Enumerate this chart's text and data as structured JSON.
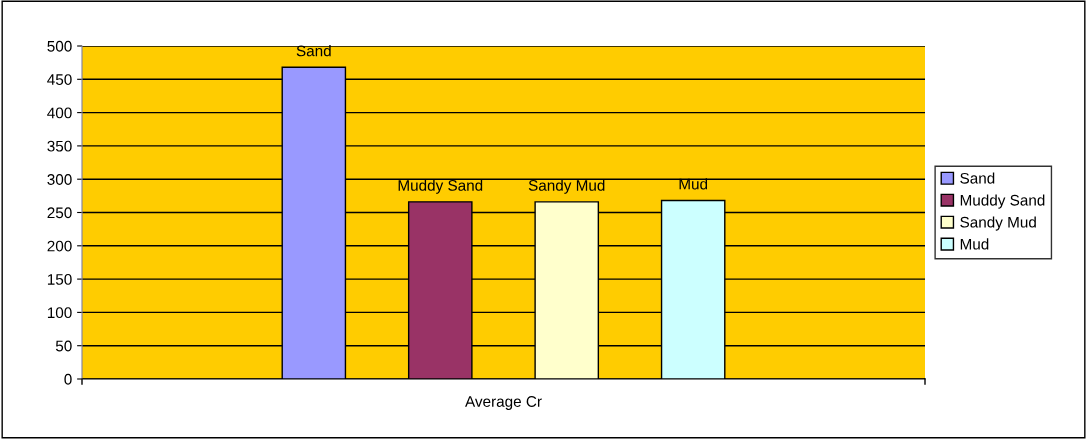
{
  "chart_data": {
    "type": "bar",
    "categories": [
      "Average Cr"
    ],
    "series": [
      {
        "name": "Sand",
        "color": "#9999ff",
        "values": [
          468
        ]
      },
      {
        "name": "Muddy Sand",
        "color": "#993366",
        "values": [
          266
        ]
      },
      {
        "name": "Sandy Mud",
        "color": "#ffffcc",
        "values": [
          266
        ]
      },
      {
        "name": "Mud",
        "color": "#ccffff",
        "values": [
          268
        ]
      }
    ],
    "ylim": [
      0,
      500
    ],
    "yticks": [
      0,
      50,
      100,
      150,
      200,
      250,
      300,
      350,
      400,
      450,
      500
    ],
    "grid": "y",
    "legend": "right"
  }
}
